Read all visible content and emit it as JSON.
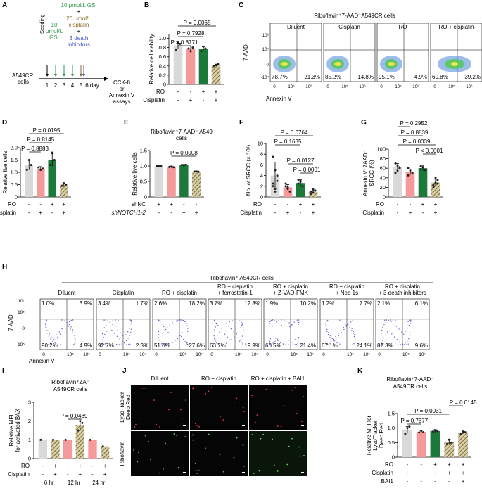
{
  "colors": {
    "gray": "#d9d9d9",
    "pink": "#f49a9a",
    "green": "#1b7a3a",
    "hatch": "#8a7a4a",
    "green_text": "#2a9a4a",
    "brown_text": "#8a6a1e",
    "blue_text": "#3c54c8"
  },
  "labels": {
    "A": "A",
    "B": "B",
    "C": "C",
    "D": "D",
    "E": "E",
    "F": "F",
    "G": "G",
    "H": "H",
    "I": "I",
    "J": "J",
    "K": "K"
  },
  "A": {
    "gsi10": [
      "10",
      "μmol/L",
      "GSI"
    ],
    "gsi10b": [
      "10 μmol/L",
      "GSI"
    ],
    "plus": "+",
    "cis": [
      "20 μmol/L",
      "cisplatin"
    ],
    "plus2": "+",
    "death": [
      "3 death",
      "inhibitors"
    ],
    "seeding": "Seeding",
    "cells": [
      "A549CR",
      "cells"
    ],
    "days": [
      "1",
      "2",
      "3",
      "4",
      "5",
      "6 day"
    ],
    "assay": [
      "CCK-8",
      "or",
      "Annexin V",
      "assays"
    ]
  },
  "B": {
    "ylabel": [
      "Relative cell viability"
    ],
    "yticks": [
      "0",
      "0.2",
      "0.4",
      "0.6",
      "0.8",
      "1.0"
    ],
    "p": [
      "P = 0.0065",
      "P = 0.7928",
      "P = 0.8771"
    ],
    "rows": [
      {
        "label": "RO",
        "signs": [
          "-",
          "-",
          "+",
          "+"
        ]
      },
      {
        "label": "Cisplatin",
        "signs": [
          "-",
          "+",
          "-",
          "+"
        ]
      }
    ]
  },
  "C": {
    "title": "Riboflavin⁺7-AAD⁻A549CR cells",
    "panels": [
      {
        "name": "Diluent",
        "ll": "78.7%",
        "lr": "21.3%"
      },
      {
        "name": "Cisplatin",
        "ll": "85.2%",
        "lr": "14.8%"
      },
      {
        "name": "RO",
        "ll": "95.1%",
        "lr": "4.9%"
      },
      {
        "name": "RO + cisplatin",
        "ll": "60.8%",
        "lr": "39.2%"
      }
    ],
    "yticks": [
      "10⁶",
      "10⁴",
      "0",
      "-10⁴"
    ],
    "xticks": [
      "0",
      "10⁵",
      "10⁶"
    ],
    "xlabel": "Annexin V",
    "ylabel": "7-AAD"
  },
  "D": {
    "ylabel": "Relative live cells",
    "yticks": [
      "0",
      "0.5",
      "1.0",
      "1.5",
      "2.0"
    ],
    "p": [
      "P = 0.0195",
      "P = 0.8145",
      "P = 0.8883"
    ],
    "rows": [
      {
        "label": "RO",
        "signs": [
          "-",
          "-",
          "+",
          "+"
        ]
      },
      {
        "label": "Cisplatin",
        "signs": [
          "-",
          "+",
          "-",
          "+"
        ]
      }
    ]
  },
  "E": {
    "title": [
      "Riboflavin⁺7-AAD⁻ A549",
      "cells"
    ],
    "ylabel": "Relative live cells",
    "yticks": [
      "0",
      "0.5",
      "1.0",
      "1.5"
    ],
    "p": [
      "P = 0.0008"
    ],
    "rows": [
      {
        "label": "shNC",
        "signs": [
          "+",
          "+",
          "-",
          "-"
        ]
      },
      {
        "label": "shNOTCH1-2",
        "signs": [
          "-",
          "-",
          "+",
          "+"
        ]
      }
    ]
  },
  "F": {
    "ylabel": "No. of SRCC (× 10³)",
    "yticks": [
      "0",
      "2",
      "4",
      "6",
      "8",
      "10"
    ],
    "p": [
      "P = 0.0764",
      "P = 0.1635",
      "P = 0.0127",
      "P = 0.0001"
    ],
    "rows": [
      {
        "label": "RO",
        "signs": [
          "-",
          "-",
          "+",
          "+"
        ]
      },
      {
        "label": "Cisplatin",
        "signs": [
          "-",
          "+",
          "-",
          "+"
        ]
      }
    ]
  },
  "G": {
    "ylabel": [
      "Annexin V⁻7AAD⁻",
      "SRCC (%)"
    ],
    "yticks": [
      "0",
      "20",
      "40",
      "60",
      "80",
      "100"
    ],
    "p": [
      "P = 0.2952",
      "P = 0.8839",
      "P = 0.0039",
      "P < 0.0001"
    ],
    "rows": [
      {
        "label": "RO",
        "signs": [
          "-",
          "-",
          "+",
          "+"
        ]
      },
      {
        "label": "Cisplatin",
        "signs": [
          "-",
          "+",
          "-",
          "+"
        ]
      }
    ]
  },
  "H": {
    "title": "Riboflavin⁺ A549CR cells",
    "panels": [
      {
        "name": [
          "Diluent"
        ],
        "ul": "1.0%",
        "ur": "3.9%",
        "ll": "90.2%",
        "lr": "4.9%"
      },
      {
        "name": [
          "Cisplatin"
        ],
        "ul": "3.4%",
        "ur": "1.7%",
        "ll": "92.7%",
        "lr": "2.3%"
      },
      {
        "name": [
          "RO + cisplatin"
        ],
        "ul": "2.6%",
        "ur": "18.2%",
        "ll": "51.6%",
        "lr": "27.6%"
      },
      {
        "name": [
          "RO + cisplatin",
          "+ ferrostatin-1"
        ],
        "ul": "3.7%",
        "ur": "12.8%",
        "ll": "63.7%",
        "lr": "19.9%"
      },
      {
        "name": [
          "RO + cisplatin",
          "+ Z-VAD-FMK"
        ],
        "ul": "1.9%",
        "ur": "10.2%",
        "ll": "66.5%",
        "lr": "21.4%"
      },
      {
        "name": [
          "RO + cisplatin",
          "+ Nec-1s"
        ],
        "ul": "1.2%",
        "ur": "7.7%",
        "ll": "67.1%",
        "lr": "24.1%"
      },
      {
        "name": [
          "RO + cisplatin",
          "+ 3 death inhibitors"
        ],
        "ul": "2.1%",
        "ur": "6.1%",
        "ll": "82.3%",
        "lr": "9.6%"
      }
    ],
    "yticks": [
      "10⁷",
      "10⁵",
      "0",
      "-10⁵"
    ],
    "xticks": [
      "0",
      "10⁵",
      "10⁷"
    ],
    "xlabel": "Annexin V",
    "ylabel": "7-AAD"
  },
  "I": {
    "title": [
      "Riboflavin⁺ZA⁻",
      "A549CR cells"
    ],
    "ylabel": [
      "Relative MFI",
      "for activated BAX"
    ],
    "yticks": [
      "0",
      "1",
      "2",
      "3"
    ],
    "p": [
      "P = 0.0489"
    ],
    "rows": [
      {
        "label": "RO",
        "signs": [
          "-",
          "+",
          "-",
          "+",
          "-",
          "+"
        ]
      },
      {
        "label": "Cisplatin",
        "signs": [
          "-",
          "+",
          "-",
          "+",
          "-",
          "+"
        ]
      }
    ],
    "times": [
      "6 hr",
      "12 hr",
      "24 hr"
    ]
  },
  "J": {
    "cols": [
      "Diluent",
      "RO + cisplatin",
      "RO + cisplatin + BAI1"
    ],
    "rows": [
      [
        "LysoTracker",
        "Deep Red"
      ],
      [
        "Riboflavin"
      ]
    ]
  },
  "K": {
    "title": [
      "Riboflavin⁺7-AAD⁻",
      "A549CR cells"
    ],
    "ylabel": [
      "Relative MFI for",
      "LysoTracker",
      "Deep Red"
    ],
    "yticks": [
      "0",
      "0.5",
      "1.0",
      "1.5"
    ],
    "p": [
      "P = 0.7677",
      "P = 0.0031",
      "P = 0.0145"
    ],
    "rows": [
      {
        "label": "RO",
        "signs": [
          "-",
          "-",
          "+",
          "+",
          "+"
        ]
      },
      {
        "label": "Cisplatin",
        "signs": [
          "-",
          "+",
          "-",
          "+",
          "+"
        ]
      },
      {
        "label": "BAI1",
        "signs": [
          "-",
          "-",
          "-",
          "-",
          "+"
        ]
      }
    ]
  },
  "chart_data": [
    {
      "id": "B",
      "type": "bar",
      "categories": [
        "Diluent",
        "Cisplatin",
        "RO",
        "RO+cisplatin"
      ],
      "values": [
        0.85,
        0.78,
        0.77,
        0.42
      ],
      "ylim": [
        0,
        1.1
      ],
      "ylabel": "Relative cell viability"
    },
    {
      "id": "D",
      "type": "bar",
      "categories": [
        "Diluent",
        "Cisplatin",
        "RO",
        "RO+cisplatin"
      ],
      "values": [
        1.3,
        1.15,
        1.5,
        0.5
      ],
      "ylim": [
        0,
        2.0
      ],
      "ylabel": "Relative live cells"
    },
    {
      "id": "E",
      "type": "bar",
      "categories": [
        "shNC",
        "shNC+cis",
        "shNOTCH1-2",
        "shNOTCH1-2+cis"
      ],
      "values": [
        1.0,
        0.97,
        1.03,
        0.82
      ],
      "ylim": [
        0,
        1.5
      ],
      "ylabel": "Relative live cells"
    },
    {
      "id": "F",
      "type": "bar",
      "categories": [
        "Diluent",
        "Cisplatin",
        "RO",
        "RO+cisplatin"
      ],
      "values": [
        4.0,
        1.8,
        2.6,
        1.0
      ],
      "ylim": [
        0,
        10
      ],
      "ylabel": "No. of SRCC (× 10³)"
    },
    {
      "id": "G",
      "type": "bar",
      "categories": [
        "Diluent",
        "Cisplatin",
        "RO",
        "RO+cisplatin"
      ],
      "values": [
        62,
        52,
        60,
        30
      ],
      "ylim": [
        0,
        100
      ],
      "ylabel": "Annexin V⁻7AAD⁻ SRCC (%)"
    },
    {
      "id": "I",
      "type": "bar",
      "categories": [
        "6hr-",
        "6hr+",
        "12hr-",
        "12hr+",
        "24hr-",
        "24hr+"
      ],
      "values": [
        1.0,
        1.0,
        1.0,
        1.8,
        1.0,
        0.65
      ],
      "ylim": [
        0,
        3
      ],
      "ylabel": "Relative MFI for activated BAX"
    },
    {
      "id": "K",
      "type": "bar",
      "categories": [
        "Diluent",
        "Cisplatin",
        "RO",
        "RO+cisplatin",
        "RO+cisplatin+BAI1"
      ],
      "values": [
        0.95,
        0.87,
        0.9,
        0.52,
        0.85
      ],
      "ylim": [
        0,
        1.5
      ],
      "ylabel": "Relative MFI for LysoTracker Deep Red"
    }
  ]
}
